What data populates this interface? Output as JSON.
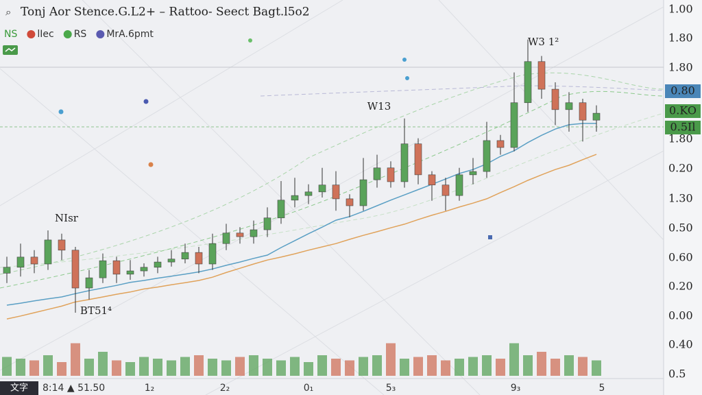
{
  "chart_data": {
    "type": "candlestick",
    "title": "Tonj Aor Stence.G.L2+ – Rattoo- Seect Bagt.l5o2",
    "legend": [
      {
        "name": "NS",
        "color": "#3a9a3a"
      },
      {
        "name": "lIec",
        "color": "#d04a3a"
      },
      {
        "name": "RS",
        "color": "#4aa84a"
      },
      {
        "name": "MrA.6pmt",
        "color": "#5a5ab0"
      }
    ],
    "annotations": [
      "W3 1²",
      "W13",
      "NIsr",
      "BT51⁴"
    ],
    "axis_labels": [
      "1.00",
      "1.80",
      "1.80",
      "1.80",
      "0.20",
      "1.30",
      "0.50",
      "0.60",
      "0.20",
      "0.00",
      "0.40",
      "0.5"
    ],
    "price_badges": [
      {
        "text": "0.80",
        "color": "#4a86b8"
      },
      {
        "text": "0.KO",
        "color": "#4a9a4a"
      },
      {
        "text": "0.5Il",
        "color": "#4a9a4a"
      }
    ],
    "time_labels": [
      "8:14 ▲ 51.50",
      "1₂",
      "2₂",
      "0₁",
      "5₃",
      "9₃",
      "5"
    ],
    "corner_label": "文字",
    "up_color": "#5aa35a",
    "down_color": "#cf7259",
    "ylim": [
      0,
      100
    ],
    "vlim": [
      0,
      100
    ],
    "open": [
      17.0,
      18.8,
      21.9,
      19.8,
      27.1,
      24.0,
      12.5,
      15.6,
      20.8,
      16.7,
      17.7,
      18.8,
      20.4,
      21.3,
      23.3,
      19.8,
      26.0,
      29.2,
      28.1,
      30.2,
      33.8,
      39.2,
      40.6,
      41.7,
      43.8,
      39.6,
      37.5,
      45.4,
      49.0,
      44.8,
      56.3,
      46.9,
      43.8,
      40.6,
      46.9,
      47.9,
      57.3,
      55.2,
      68.8,
      81.3,
      72.9,
      66.7,
      68.8,
      63.5
    ],
    "high": [
      22,
      26,
      24,
      30,
      29,
      25,
      18,
      23,
      22,
      21,
      20,
      22,
      24,
      26,
      25,
      29,
      32,
      31,
      33,
      37,
      45,
      46,
      44,
      49,
      48,
      41,
      52,
      53,
      51,
      64,
      58,
      48,
      46,
      49,
      52,
      63,
      59,
      78,
      88,
      83,
      75,
      72,
      70,
      68
    ],
    "low": [
      14,
      16,
      17,
      18,
      21,
      5,
      9,
      14,
      14,
      15,
      16,
      17,
      19,
      20,
      17,
      18,
      24,
      26,
      26,
      28,
      32,
      37,
      38,
      40,
      36,
      34,
      36,
      43,
      43,
      43,
      44,
      39,
      36,
      39,
      44,
      46,
      53,
      54,
      66,
      70,
      62,
      60,
      57,
      60
    ],
    "close": [
      18.8,
      21.9,
      19.8,
      27.1,
      24.0,
      12.5,
      15.6,
      20.8,
      16.7,
      17.7,
      18.8,
      20.4,
      21.3,
      23.3,
      19.8,
      26.0,
      29.2,
      28.1,
      30.2,
      33.8,
      39.2,
      40.6,
      41.7,
      43.8,
      39.6,
      37.5,
      45.4,
      49.0,
      44.8,
      56.3,
      46.9,
      43.8,
      40.6,
      46.9,
      47.9,
      57.3,
      55.2,
      68.8,
      81.3,
      72.9,
      66.7,
      68.8,
      63.5,
      65.6
    ],
    "volume": [
      55,
      50,
      45,
      60,
      40,
      95,
      50,
      70,
      45,
      40,
      55,
      50,
      45,
      55,
      60,
      50,
      45,
      55,
      60,
      50,
      45,
      55,
      40,
      60,
      50,
      45,
      55,
      60,
      95,
      50,
      55,
      60,
      45,
      50,
      55,
      60,
      50,
      95,
      60,
      70,
      50,
      60,
      55,
      45
    ],
    "series": [
      {
        "name": "MA1",
        "color": "#5a9fc4",
        "values": [
          7.3,
          7.9,
          8.6,
          9.2,
          9.8,
          10.8,
          11.7,
          12.5,
          13.3,
          14.2,
          14.8,
          15.5,
          16.1,
          16.7,
          17.4,
          18.3,
          19.4,
          20.4,
          21.5,
          22.5,
          24.8,
          26.9,
          29.0,
          31.0,
          33.1,
          34.2,
          35.8,
          37.5,
          39.2,
          40.8,
          42.4,
          44.0,
          45.6,
          47.3,
          48.5,
          50.2,
          52.5,
          54.2,
          56.7,
          58.9,
          60.8,
          62.1,
          62.5,
          62.5
        ]
      },
      {
        "name": "MA2",
        "color": "#e0a25a",
        "values": [
          3.1,
          4.0,
          5.0,
          6.0,
          7.0,
          8.3,
          9.0,
          9.8,
          10.6,
          11.3,
          12.2,
          12.8,
          13.5,
          14.1,
          14.8,
          15.8,
          17.2,
          18.5,
          19.8,
          21.0,
          21.9,
          22.9,
          24.0,
          25.0,
          26.0,
          27.3,
          28.5,
          29.6,
          30.8,
          31.9,
          33.3,
          34.6,
          35.8,
          37.1,
          38.3,
          39.6,
          41.5,
          43.3,
          45.2,
          46.9,
          48.5,
          49.8,
          51.5,
          53.1
        ]
      }
    ]
  }
}
